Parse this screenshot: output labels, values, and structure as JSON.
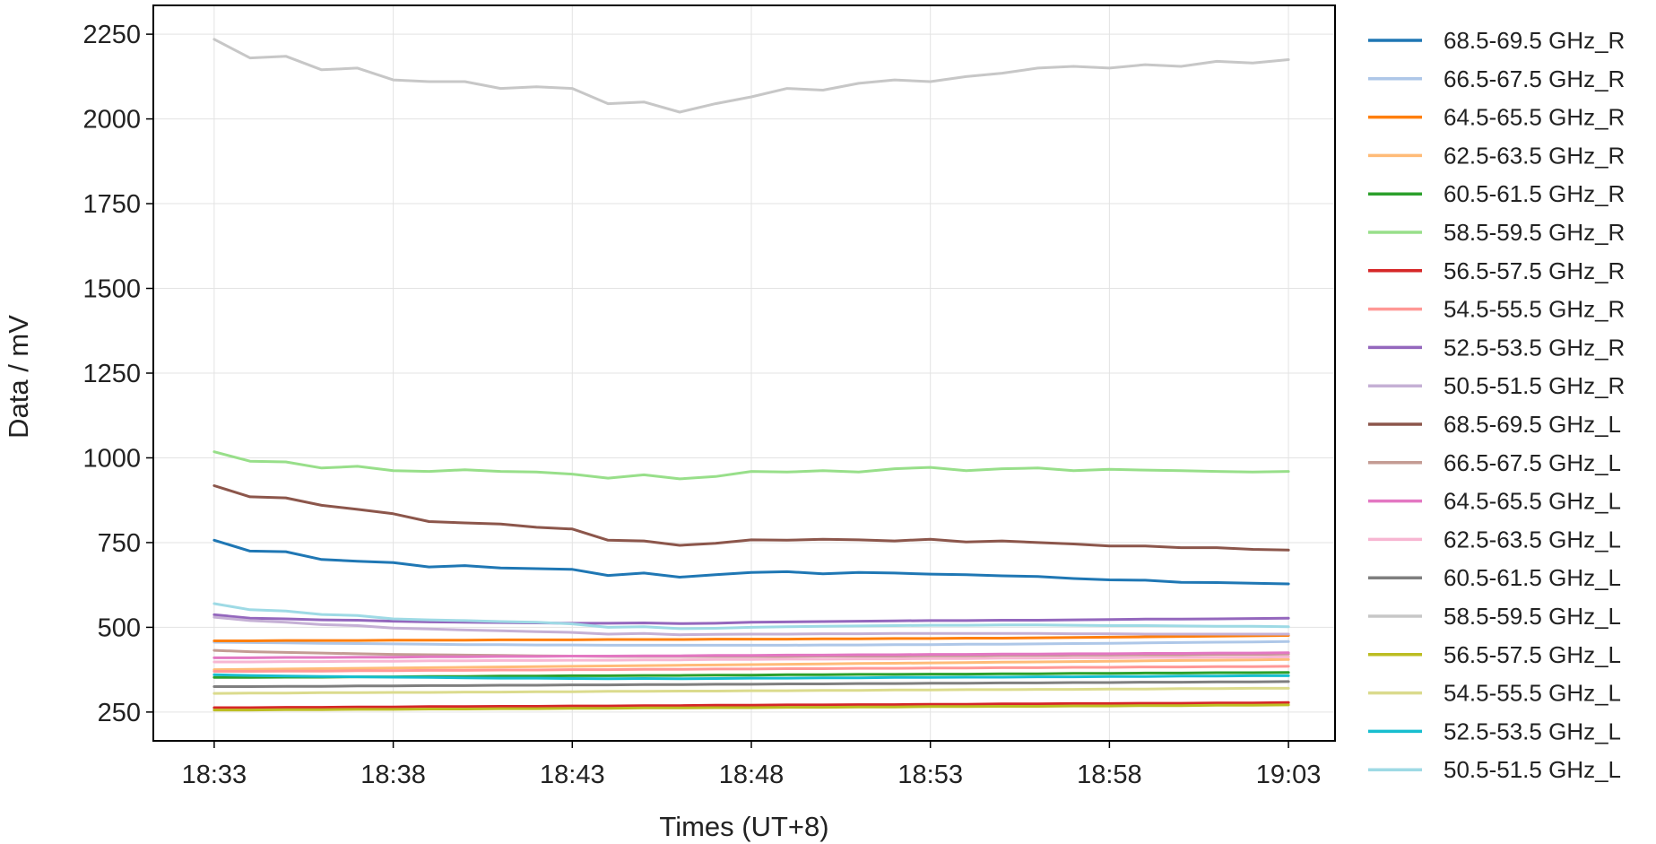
{
  "chart_data": {
    "type": "line",
    "xlabel": "Times (UT+8)",
    "ylabel": "Data / mV",
    "x_ticks": [
      "18:33",
      "18:38",
      "18:43",
      "18:48",
      "18:53",
      "18:58",
      "19:03"
    ],
    "y_ticks": [
      250,
      500,
      750,
      1000,
      1250,
      1500,
      1750,
      2000,
      2250
    ],
    "xlim": [
      "18:31:18",
      "19:04:18"
    ],
    "ylim": [
      165,
      2335
    ],
    "grid": true,
    "legend_position": "outside-right",
    "x": [
      "18:33",
      "18:34",
      "18:35",
      "18:36",
      "18:37",
      "18:38",
      "18:39",
      "18:40",
      "18:41",
      "18:42",
      "18:43",
      "18:44",
      "18:45",
      "18:46",
      "18:47",
      "18:48",
      "18:49",
      "18:50",
      "18:51",
      "18:52",
      "18:53",
      "18:54",
      "18:55",
      "18:56",
      "18:57",
      "18:58",
      "18:59",
      "19:00",
      "19:01",
      "19:02",
      "19:03"
    ],
    "series": [
      {
        "name": "68.5-69.5 GHz_R",
        "color": "#1f77b4",
        "values": [
          757,
          725,
          723,
          700,
          695,
          691,
          678,
          682,
          675,
          673,
          671,
          653,
          660,
          648,
          655,
          662,
          664,
          658,
          662,
          660,
          657,
          655,
          652,
          650,
          644,
          640,
          639,
          633,
          632,
          630,
          628
        ]
      },
      {
        "name": "66.5-67.5 GHz_R",
        "color": "#aec7e8",
        "values": [
          456,
          455,
          454,
          453,
          452,
          451,
          450,
          449,
          449,
          448,
          448,
          447,
          447,
          447,
          447,
          447,
          447,
          448,
          448,
          449,
          449,
          450,
          450,
          451,
          452,
          453,
          454,
          455,
          456,
          457,
          458
        ]
      },
      {
        "name": "64.5-65.5 GHz_R",
        "color": "#ff7f0e",
        "values": [
          460,
          460,
          461,
          461,
          461,
          462,
          462,
          462,
          463,
          463,
          463,
          464,
          464,
          464,
          465,
          465,
          465,
          466,
          466,
          467,
          467,
          468,
          468,
          469,
          470,
          471,
          472,
          473,
          474,
          475,
          476
        ]
      },
      {
        "name": "62.5-63.5 GHz_R",
        "color": "#ffbb78",
        "values": [
          375,
          376,
          377,
          378,
          379,
          380,
          381,
          382,
          383,
          384,
          385,
          386,
          387,
          388,
          389,
          390,
          391,
          392,
          393,
          394,
          395,
          396,
          397,
          398,
          399,
          400,
          401,
          402,
          403,
          404,
          405
        ]
      },
      {
        "name": "60.5-61.5 GHz_R",
        "color": "#2ca02c",
        "values": [
          352,
          352,
          353,
          353,
          354,
          354,
          355,
          355,
          356,
          356,
          357,
          357,
          358,
          358,
          359,
          359,
          360,
          360,
          361,
          361,
          362,
          362,
          363,
          363,
          364,
          364,
          365,
          365,
          366,
          366,
          367
        ]
      },
      {
        "name": "58.5-59.5 GHz_R",
        "color": "#98df8a",
        "values": [
          1018,
          990,
          988,
          970,
          975,
          962,
          960,
          965,
          960,
          958,
          952,
          940,
          950,
          938,
          945,
          960,
          958,
          962,
          958,
          968,
          972,
          962,
          968,
          970,
          962,
          966,
          964,
          962,
          960,
          958,
          960
        ]
      },
      {
        "name": "56.5-57.5 GHz_R",
        "color": "#d62728",
        "values": [
          263,
          263,
          264,
          264,
          265,
          265,
          266,
          266,
          267,
          267,
          268,
          268,
          269,
          269,
          270,
          270,
          271,
          271,
          272,
          272,
          273,
          273,
          274,
          274,
          275,
          275,
          276,
          276,
          277,
          277,
          278
        ]
      },
      {
        "name": "54.5-55.5 GHz_R",
        "color": "#ff9896",
        "values": [
          370,
          370,
          371,
          371,
          372,
          372,
          373,
          373,
          374,
          374,
          375,
          375,
          376,
          376,
          377,
          377,
          378,
          378,
          379,
          379,
          380,
          380,
          381,
          381,
          382,
          382,
          383,
          383,
          384,
          384,
          385
        ]
      },
      {
        "name": "52.5-53.5 GHz_R",
        "color": "#9467bd",
        "values": [
          537,
          527,
          525,
          522,
          521,
          518,
          516,
          515,
          514,
          513,
          512,
          512,
          513,
          511,
          512,
          515,
          516,
          517,
          518,
          519,
          520,
          520,
          521,
          521,
          522,
          523,
          524,
          524,
          525,
          526,
          527
        ]
      },
      {
        "name": "50.5-51.5 GHz_R",
        "color": "#c5b0d5",
        "values": [
          530,
          520,
          515,
          508,
          505,
          498,
          495,
          492,
          490,
          487,
          485,
          480,
          482,
          478,
          479,
          480,
          480,
          481,
          481,
          482,
          482,
          482,
          482,
          482,
          481,
          481,
          480,
          480,
          480,
          480,
          480
        ]
      },
      {
        "name": "68.5-69.5 GHz_L",
        "color": "#8c564b",
        "values": [
          918,
          885,
          882,
          860,
          848,
          835,
          812,
          808,
          805,
          795,
          790,
          757,
          755,
          742,
          748,
          758,
          757,
          760,
          758,
          755,
          760,
          752,
          755,
          750,
          746,
          740,
          740,
          735,
          735,
          730,
          728
        ]
      },
      {
        "name": "66.5-67.5 GHz_L",
        "color": "#c49c94",
        "values": [
          432,
          428,
          426,
          424,
          422,
          420,
          419,
          418,
          417,
          416,
          415,
          414,
          414,
          414,
          414,
          414,
          414,
          415,
          415,
          415,
          416,
          416,
          417,
          417,
          418,
          418,
          419,
          419,
          420,
          420,
          421
        ]
      },
      {
        "name": "64.5-65.5 GHz_L",
        "color": "#e377c2",
        "values": [
          410,
          410,
          411,
          411,
          412,
          412,
          413,
          413,
          414,
          414,
          415,
          415,
          416,
          416,
          417,
          417,
          418,
          418,
          419,
          419,
          420,
          420,
          421,
          421,
          422,
          422,
          423,
          423,
          424,
          424,
          425
        ]
      },
      {
        "name": "62.5-63.5 GHz_L",
        "color": "#f7b6d2",
        "values": [
          398,
          398,
          399,
          399,
          400,
          400,
          401,
          401,
          402,
          402,
          403,
          403,
          404,
          404,
          405,
          405,
          406,
          406,
          407,
          407,
          408,
          408,
          409,
          409,
          410,
          410,
          411,
          411,
          412,
          412,
          413
        ]
      },
      {
        "name": "60.5-61.5 GHz_L",
        "color": "#7f7f7f",
        "values": [
          325,
          325,
          326,
          326,
          327,
          327,
          328,
          328,
          329,
          329,
          330,
          330,
          331,
          331,
          332,
          332,
          333,
          333,
          334,
          334,
          335,
          335,
          336,
          336,
          337,
          337,
          338,
          338,
          339,
          339,
          340
        ]
      },
      {
        "name": "58.5-59.5 GHz_L",
        "color": "#c7c7c7",
        "values": [
          2235,
          2180,
          2185,
          2145,
          2150,
          2115,
          2110,
          2110,
          2090,
          2095,
          2090,
          2045,
          2050,
          2020,
          2045,
          2065,
          2090,
          2085,
          2105,
          2115,
          2110,
          2125,
          2135,
          2150,
          2155,
          2150,
          2160,
          2155,
          2170,
          2165,
          2175
        ]
      },
      {
        "name": "56.5-57.5 GHz_L",
        "color": "#bcbd22",
        "values": [
          256,
          256,
          257,
          257,
          258,
          258,
          259,
          259,
          260,
          260,
          261,
          261,
          262,
          262,
          263,
          263,
          264,
          264,
          265,
          265,
          266,
          266,
          267,
          267,
          268,
          268,
          269,
          269,
          270,
          270,
          271
        ]
      },
      {
        "name": "54.5-55.5 GHz_L",
        "color": "#dbdb8d",
        "values": [
          305,
          306,
          306,
          307,
          307,
          308,
          308,
          309,
          309,
          310,
          310,
          311,
          311,
          312,
          312,
          313,
          313,
          314,
          314,
          315,
          315,
          316,
          316,
          317,
          317,
          318,
          318,
          319,
          319,
          320,
          320
        ]
      },
      {
        "name": "52.5-53.5 GHz_L",
        "color": "#17becf",
        "values": [
          360,
          358,
          356,
          355,
          354,
          353,
          352,
          351,
          350,
          350,
          349,
          348,
          349,
          348,
          349,
          350,
          350,
          351,
          351,
          352,
          352,
          353,
          353,
          354,
          354,
          355,
          355,
          356,
          356,
          357,
          357
        ]
      },
      {
        "name": "50.5-51.5 GHz_L",
        "color": "#9edae5",
        "values": [
          570,
          552,
          548,
          538,
          535,
          525,
          522,
          520,
          517,
          515,
          510,
          500,
          502,
          496,
          497,
          500,
          502,
          503,
          504,
          505,
          506,
          506,
          507,
          507,
          506,
          505,
          505,
          504,
          503,
          503,
          502
        ]
      }
    ]
  }
}
